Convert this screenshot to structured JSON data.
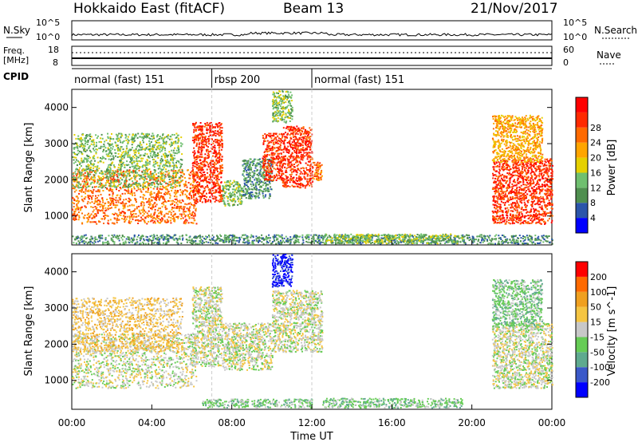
{
  "header": {
    "title": "Hokkaido East (fitACF)",
    "beam": "Beam 13",
    "date": "21/Nov/2017"
  },
  "top_labels": {
    "nsky": "N.Sky",
    "nsearch": "N.Search",
    "freq": "Freq.",
    "freq_unit": "[MHz]",
    "nave": "Nave",
    "cpid": "CPID"
  },
  "top_ticks": {
    "noise_top": "10^5",
    "noise_bottom": "10^0",
    "freq_top": "18",
    "freq_bottom": "8",
    "nave_top": "60",
    "nave_bottom": "0"
  },
  "cpid_segments": [
    {
      "label": "normal (fast) 151",
      "start_hour": 0
    },
    {
      "label": "rbsp 200",
      "start_hour": 7
    },
    {
      "label": "normal (fast) 151",
      "start_hour": 12
    }
  ],
  "colors": {
    "power": [
      "#0000ff",
      "#2b55aa",
      "#4f8f4f",
      "#6fbf6f",
      "#e5d000",
      "#ffa500",
      "#ff6a00",
      "#ff2a00",
      "#ff0000"
    ],
    "velocity": [
      "#0000ff",
      "#3b59c9",
      "#5faa8f",
      "#66cc55",
      "#c8c8c8",
      "#f5c542",
      "#f0a020",
      "#ff6a00",
      "#ff0000"
    ]
  },
  "chart_data": [
    {
      "type": "heatmap",
      "panel": "power",
      "xlabel": "Time UT",
      "ylabel": "Slant Range [km]",
      "colorbar_label": "Power [dB]",
      "colorbar_ticks": [
        "4",
        "8",
        "12",
        "16",
        "20",
        "24",
        "28"
      ],
      "xlim": [
        0,
        24
      ],
      "ylim": [
        200,
        4500
      ],
      "yticks": [
        "1000",
        "2000",
        "3000",
        "4000"
      ],
      "xticks": [
        "00:00",
        "04:00",
        "08:00",
        "12:00",
        "16:00",
        "20:00",
        "00:00"
      ],
      "regions": [
        {
          "t0": 0.0,
          "t1": 6.2,
          "r0": 800,
          "r1": 2300,
          "level": 6
        },
        {
          "t0": 0.0,
          "t1": 5.5,
          "r0": 1800,
          "r1": 3300,
          "level": 3
        },
        {
          "t0": 6.0,
          "t1": 7.5,
          "r0": 1400,
          "r1": 3600,
          "level": 7
        },
        {
          "t0": 7.5,
          "t1": 8.5,
          "r0": 1300,
          "r1": 2000,
          "level": 3
        },
        {
          "t0": 8.5,
          "t1": 10.0,
          "r0": 1500,
          "r1": 2600,
          "level": 2
        },
        {
          "t0": 9.5,
          "t1": 10.5,
          "r0": 2000,
          "r1": 3300,
          "level": 7
        },
        {
          "t0": 10.0,
          "t1": 11.0,
          "r0": 3600,
          "r1": 4500,
          "level": 3
        },
        {
          "t0": 10.5,
          "t1": 12.0,
          "r0": 1800,
          "r1": 3500,
          "level": 7
        },
        {
          "t0": 12.0,
          "t1": 12.5,
          "r0": 2000,
          "r1": 2500,
          "level": 6
        },
        {
          "t0": 0.0,
          "t1": 24.0,
          "r0": 250,
          "r1": 500,
          "level": 2
        },
        {
          "t0": 12.5,
          "t1": 19.5,
          "r0": 260,
          "r1": 520,
          "level": 3
        },
        {
          "t0": 21.0,
          "t1": 24.0,
          "r0": 800,
          "r1": 2600,
          "level": 7
        },
        {
          "t0": 21.0,
          "t1": 23.5,
          "r0": 2500,
          "r1": 3800,
          "level": 5
        }
      ]
    },
    {
      "type": "heatmap",
      "panel": "velocity",
      "xlabel": "Time UT",
      "ylabel": "Slant Range [km]",
      "colorbar_label": "Velocity [m s^-1]",
      "colorbar_ticks": [
        "-200",
        "-100",
        "-50",
        "-15",
        "15",
        "50",
        "100",
        "200"
      ],
      "xlim": [
        0,
        24
      ],
      "ylim": [
        200,
        4500
      ],
      "yticks": [
        "1000",
        "2000",
        "3000",
        "4000"
      ],
      "xticks": [
        "00:00",
        "04:00",
        "08:00",
        "12:00",
        "16:00",
        "20:00",
        "00:00"
      ],
      "regions": [
        {
          "t0": 0.0,
          "t1": 6.2,
          "r0": 800,
          "r1": 2300,
          "level": 4
        },
        {
          "t0": 0.0,
          "t1": 5.5,
          "r0": 1800,
          "r1": 3300,
          "level": 5
        },
        {
          "t0": 6.0,
          "t1": 7.5,
          "r0": 1400,
          "r1": 3600,
          "level": 4
        },
        {
          "t0": 7.5,
          "t1": 10.0,
          "r0": 1300,
          "r1": 2600,
          "level": 4
        },
        {
          "t0": 10.0,
          "t1": 11.0,
          "r0": 3600,
          "r1": 4500,
          "level": 0
        },
        {
          "t0": 10.0,
          "t1": 12.5,
          "r0": 1800,
          "r1": 3500,
          "level": 4
        },
        {
          "t0": 6.5,
          "t1": 12.0,
          "r0": 260,
          "r1": 500,
          "level": 3
        },
        {
          "t0": 12.5,
          "t1": 19.5,
          "r0": 260,
          "r1": 520,
          "level": 3
        },
        {
          "t0": 21.0,
          "t1": 24.0,
          "r0": 800,
          "r1": 2600,
          "level": 4
        },
        {
          "t0": 21.0,
          "t1": 23.5,
          "r0": 2500,
          "r1": 3800,
          "level": 3
        }
      ]
    }
  ]
}
